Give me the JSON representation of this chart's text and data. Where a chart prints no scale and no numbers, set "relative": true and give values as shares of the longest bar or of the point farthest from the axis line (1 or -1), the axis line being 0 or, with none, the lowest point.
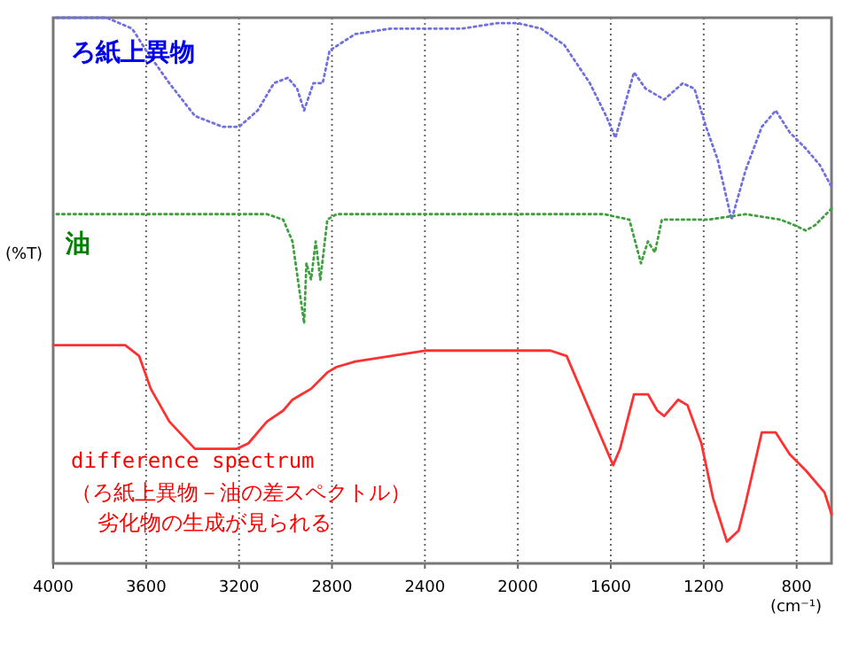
{
  "chart_data": {
    "type": "line",
    "relative": true,
    "xlabel": "(cm⁻¹)",
    "ylabel": "(%T)",
    "xlim": [
      4000,
      650
    ],
    "xticks": [
      4000,
      3600,
      3200,
      2800,
      2400,
      2000,
      1600,
      1200,
      800
    ],
    "grid": "x",
    "series": [
      {
        "name": "ろ紙上異物",
        "color": "#7070e0",
        "line_style": "dotted",
        "x": [
          3985,
          3770,
          3660,
          3600,
          3500,
          3390,
          3270,
          3200,
          3120,
          3050,
          2990,
          2950,
          2920,
          2880,
          2840,
          2810,
          2700,
          2550,
          2400,
          2240,
          2090,
          2000,
          1900,
          1800,
          1690,
          1620,
          1580,
          1540,
          1500,
          1450,
          1370,
          1290,
          1240,
          1190,
          1140,
          1080,
          1020,
          950,
          890,
          830,
          760,
          700,
          650
        ],
        "values": [
          1.0,
          1.0,
          0.98,
          0.94,
          0.88,
          0.82,
          0.8,
          0.8,
          0.83,
          0.88,
          0.89,
          0.87,
          0.83,
          0.88,
          0.88,
          0.94,
          0.97,
          0.98,
          0.98,
          0.98,
          0.99,
          0.99,
          0.98,
          0.95,
          0.88,
          0.82,
          0.78,
          0.84,
          0.9,
          0.87,
          0.85,
          0.88,
          0.87,
          0.8,
          0.74,
          0.63,
          0.72,
          0.8,
          0.83,
          0.79,
          0.76,
          0.73,
          0.69
        ]
      },
      {
        "name": "油",
        "color": "#40a040",
        "line_style": "dotted",
        "x": [
          3985,
          3080,
          3010,
          2970,
          2950,
          2920,
          2910,
          2890,
          2870,
          2850,
          2820,
          2780,
          2020,
          1630,
          1520,
          1470,
          1440,
          1410,
          1380,
          1330,
          1180,
          1020,
          870,
          810,
          760,
          720,
          650
        ],
        "values": [
          0.64,
          0.64,
          0.63,
          0.59,
          0.53,
          0.44,
          0.55,
          0.52,
          0.59,
          0.52,
          0.63,
          0.64,
          0.64,
          0.64,
          0.63,
          0.55,
          0.59,
          0.57,
          0.63,
          0.63,
          0.63,
          0.64,
          0.63,
          0.62,
          0.61,
          0.62,
          0.65
        ]
      },
      {
        "name": "difference spectrum",
        "color": "#ff3030",
        "line_style": "solid",
        "x": [
          4000,
          3690,
          3630,
          3580,
          3500,
          3390,
          3310,
          3210,
          3160,
          3080,
          3010,
          2970,
          2930,
          2890,
          2820,
          2780,
          2700,
          2400,
          2170,
          2020,
          1860,
          1790,
          1710,
          1630,
          1590,
          1560,
          1500,
          1440,
          1400,
          1370,
          1330,
          1310,
          1270,
          1210,
          1160,
          1100,
          1050,
          1020,
          950,
          890,
          830,
          760,
          680,
          650
        ],
        "values": [
          0.4,
          0.4,
          0.38,
          0.32,
          0.26,
          0.21,
          0.21,
          0.21,
          0.22,
          0.26,
          0.28,
          0.3,
          0.31,
          0.32,
          0.35,
          0.36,
          0.37,
          0.39,
          0.39,
          0.39,
          0.39,
          0.38,
          0.3,
          0.22,
          0.18,
          0.21,
          0.31,
          0.31,
          0.28,
          0.27,
          0.29,
          0.3,
          0.29,
          0.22,
          0.12,
          0.04,
          0.06,
          0.11,
          0.24,
          0.24,
          0.2,
          0.17,
          0.13,
          0.09
        ]
      }
    ],
    "annotations": [
      "（ろ紙上異物－油の差スペクトル）",
      "劣化物の生成が見られる"
    ]
  }
}
